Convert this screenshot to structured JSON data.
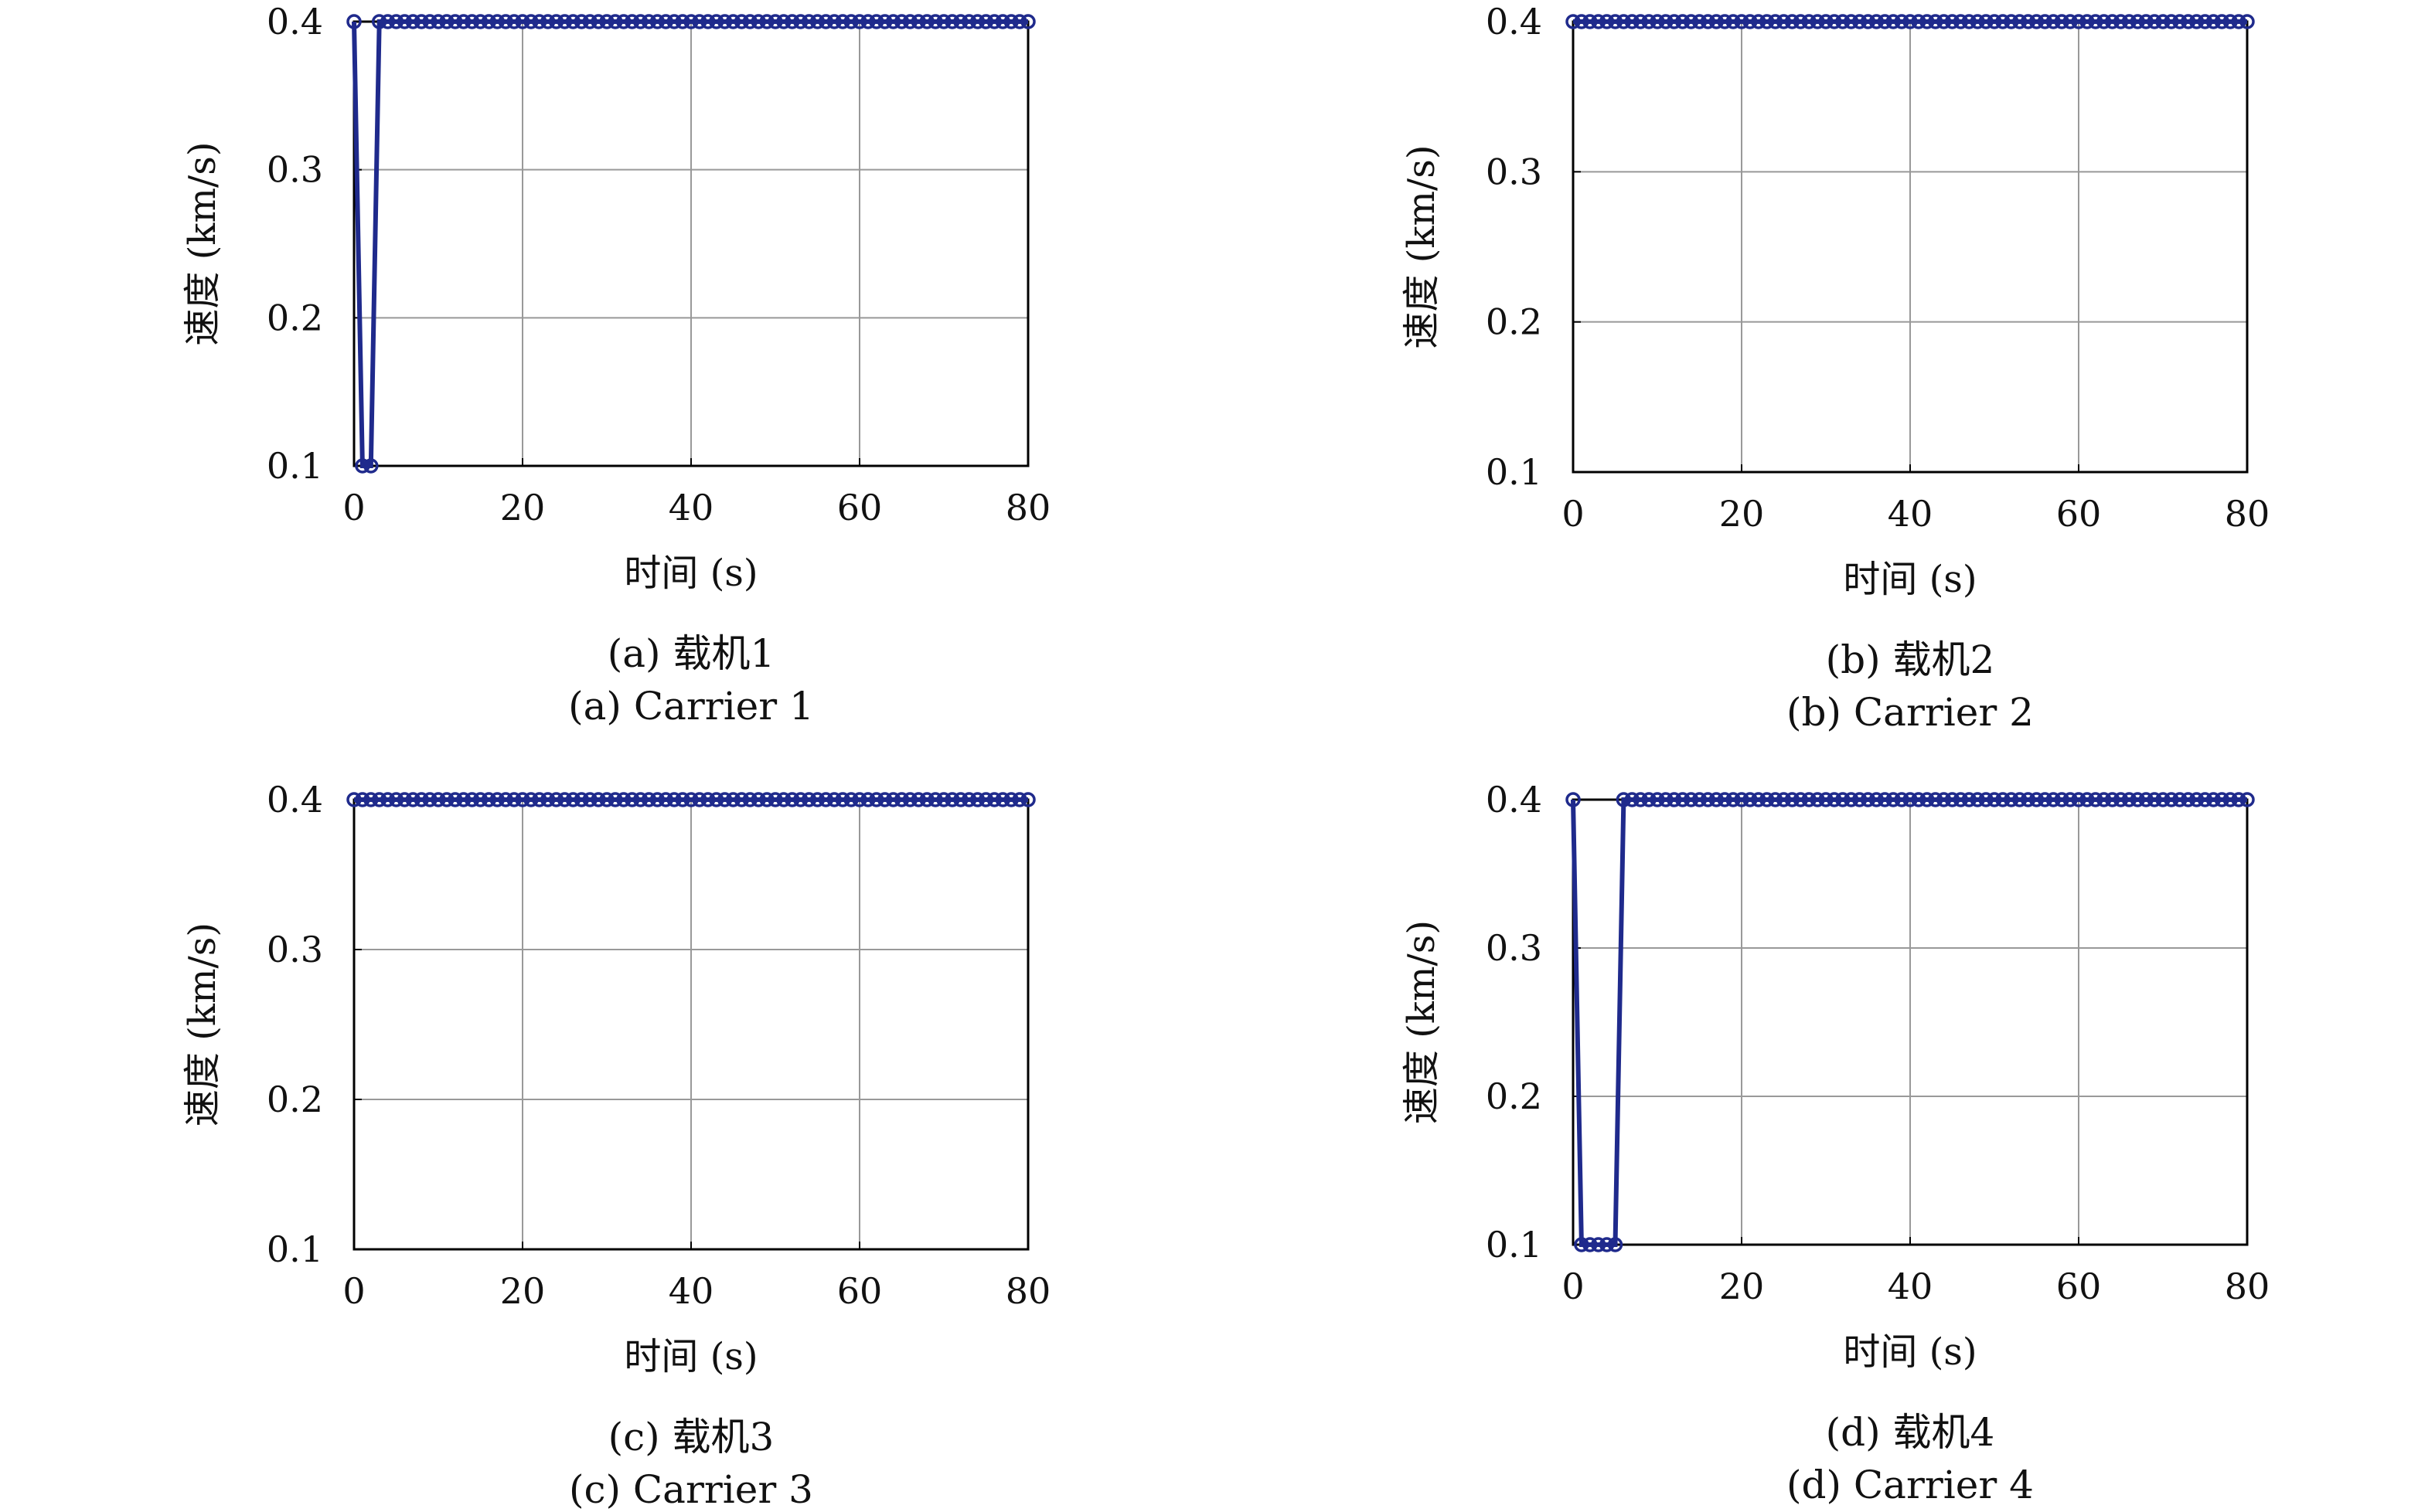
{
  "colors": {
    "series": "#1f2a8c",
    "grid": "#999999",
    "axis": "#000000",
    "background": "#ffffff"
  },
  "chart_data": [
    {
      "type": "line",
      "xlabel": "时间 (s)",
      "ylabel": "速度 (km/s)",
      "caption_cn": "(a) 载机1",
      "caption_en": "(a) Carrier 1",
      "xlim": [
        0,
        80
      ],
      "ylim": [
        0.1,
        0.4
      ],
      "xticks": [
        "0",
        "20",
        "40",
        "60",
        "80"
      ],
      "yticks": [
        "0.1",
        "0.2",
        "0.3",
        "0.4"
      ],
      "grid": true,
      "marker": "circle",
      "x": [
        0,
        1,
        2,
        3,
        4,
        5,
        6,
        7,
        8,
        9,
        10,
        11,
        12,
        13,
        14,
        15,
        16,
        17,
        18,
        19,
        20,
        21,
        22,
        23,
        24,
        25,
        26,
        27,
        28,
        29,
        30,
        31,
        32,
        33,
        34,
        35,
        36,
        37,
        38,
        39,
        40,
        41,
        42,
        43,
        44,
        45,
        46,
        47,
        48,
        49,
        50,
        51,
        52,
        53,
        54,
        55,
        56,
        57,
        58,
        59,
        60,
        61,
        62,
        63,
        64,
        65,
        66,
        67,
        68,
        69,
        70,
        71,
        72,
        73,
        74,
        75,
        76,
        77,
        78,
        79,
        80
      ],
      "y": [
        0.4,
        0.1,
        0.1,
        0.4,
        0.4,
        0.4,
        0.4,
        0.4,
        0.4,
        0.4,
        0.4,
        0.4,
        0.4,
        0.4,
        0.4,
        0.4,
        0.4,
        0.4,
        0.4,
        0.4,
        0.4,
        0.4,
        0.4,
        0.4,
        0.4,
        0.4,
        0.4,
        0.4,
        0.4,
        0.4,
        0.4,
        0.4,
        0.4,
        0.4,
        0.4,
        0.4,
        0.4,
        0.4,
        0.4,
        0.4,
        0.4,
        0.4,
        0.4,
        0.4,
        0.4,
        0.4,
        0.4,
        0.4,
        0.4,
        0.4,
        0.4,
        0.4,
        0.4,
        0.4,
        0.4,
        0.4,
        0.4,
        0.4,
        0.4,
        0.4,
        0.4,
        0.4,
        0.4,
        0.4,
        0.4,
        0.4,
        0.4,
        0.4,
        0.4,
        0.4,
        0.4,
        0.4,
        0.4,
        0.4,
        0.4,
        0.4,
        0.4,
        0.4,
        0.4,
        0.4,
        0.4
      ]
    },
    {
      "type": "line",
      "xlabel": "时间 (s)",
      "ylabel": "速度 (km/s)",
      "caption_cn": "(b) 载机2",
      "caption_en": "(b) Carrier 2",
      "xlim": [
        0,
        80
      ],
      "ylim": [
        0.1,
        0.4
      ],
      "xticks": [
        "0",
        "20",
        "40",
        "60",
        "80"
      ],
      "yticks": [
        "0.1",
        "0.2",
        "0.3",
        "0.4"
      ],
      "grid": true,
      "marker": "circle",
      "x": [
        0,
        1,
        2,
        3,
        4,
        5,
        6,
        7,
        8,
        9,
        10,
        11,
        12,
        13,
        14,
        15,
        16,
        17,
        18,
        19,
        20,
        21,
        22,
        23,
        24,
        25,
        26,
        27,
        28,
        29,
        30,
        31,
        32,
        33,
        34,
        35,
        36,
        37,
        38,
        39,
        40,
        41,
        42,
        43,
        44,
        45,
        46,
        47,
        48,
        49,
        50,
        51,
        52,
        53,
        54,
        55,
        56,
        57,
        58,
        59,
        60,
        61,
        62,
        63,
        64,
        65,
        66,
        67,
        68,
        69,
        70,
        71,
        72,
        73,
        74,
        75,
        76,
        77,
        78,
        79,
        80
      ],
      "y": [
        0.4,
        0.4,
        0.4,
        0.4,
        0.4,
        0.4,
        0.4,
        0.4,
        0.4,
        0.4,
        0.4,
        0.4,
        0.4,
        0.4,
        0.4,
        0.4,
        0.4,
        0.4,
        0.4,
        0.4,
        0.4,
        0.4,
        0.4,
        0.4,
        0.4,
        0.4,
        0.4,
        0.4,
        0.4,
        0.4,
        0.4,
        0.4,
        0.4,
        0.4,
        0.4,
        0.4,
        0.4,
        0.4,
        0.4,
        0.4,
        0.4,
        0.4,
        0.4,
        0.4,
        0.4,
        0.4,
        0.4,
        0.4,
        0.4,
        0.4,
        0.4,
        0.4,
        0.4,
        0.4,
        0.4,
        0.4,
        0.4,
        0.4,
        0.4,
        0.4,
        0.4,
        0.4,
        0.4,
        0.4,
        0.4,
        0.4,
        0.4,
        0.4,
        0.4,
        0.4,
        0.4,
        0.4,
        0.4,
        0.4,
        0.4,
        0.4,
        0.4,
        0.4,
        0.4,
        0.4,
        0.4
      ]
    },
    {
      "type": "line",
      "xlabel": "时间 (s)",
      "ylabel": "速度 (km/s)",
      "caption_cn": "(c) 载机3",
      "caption_en": "(c) Carrier 3",
      "xlim": [
        0,
        80
      ],
      "ylim": [
        0.1,
        0.4
      ],
      "xticks": [
        "0",
        "20",
        "40",
        "60",
        "80"
      ],
      "yticks": [
        "0.1",
        "0.2",
        "0.3",
        "0.4"
      ],
      "grid": true,
      "marker": "circle",
      "x": [
        0,
        1,
        2,
        3,
        4,
        5,
        6,
        7,
        8,
        9,
        10,
        11,
        12,
        13,
        14,
        15,
        16,
        17,
        18,
        19,
        20,
        21,
        22,
        23,
        24,
        25,
        26,
        27,
        28,
        29,
        30,
        31,
        32,
        33,
        34,
        35,
        36,
        37,
        38,
        39,
        40,
        41,
        42,
        43,
        44,
        45,
        46,
        47,
        48,
        49,
        50,
        51,
        52,
        53,
        54,
        55,
        56,
        57,
        58,
        59,
        60,
        61,
        62,
        63,
        64,
        65,
        66,
        67,
        68,
        69,
        70,
        71,
        72,
        73,
        74,
        75,
        76,
        77,
        78,
        79,
        80
      ],
      "y": [
        0.4,
        0.4,
        0.4,
        0.4,
        0.4,
        0.4,
        0.4,
        0.4,
        0.4,
        0.4,
        0.4,
        0.4,
        0.4,
        0.4,
        0.4,
        0.4,
        0.4,
        0.4,
        0.4,
        0.4,
        0.4,
        0.4,
        0.4,
        0.4,
        0.4,
        0.4,
        0.4,
        0.4,
        0.4,
        0.4,
        0.4,
        0.4,
        0.4,
        0.4,
        0.4,
        0.4,
        0.4,
        0.4,
        0.4,
        0.4,
        0.4,
        0.4,
        0.4,
        0.4,
        0.4,
        0.4,
        0.4,
        0.4,
        0.4,
        0.4,
        0.4,
        0.4,
        0.4,
        0.4,
        0.4,
        0.4,
        0.4,
        0.4,
        0.4,
        0.4,
        0.4,
        0.4,
        0.4,
        0.4,
        0.4,
        0.4,
        0.4,
        0.4,
        0.4,
        0.4,
        0.4,
        0.4,
        0.4,
        0.4,
        0.4,
        0.4,
        0.4,
        0.4,
        0.4,
        0.4,
        0.4
      ]
    },
    {
      "type": "line",
      "xlabel": "时间 (s)",
      "ylabel": "速度 (km/s)",
      "caption_cn": "(d) 载机4",
      "caption_en": "(d) Carrier 4",
      "xlim": [
        0,
        80
      ],
      "ylim": [
        0.1,
        0.4
      ],
      "xticks": [
        "0",
        "20",
        "40",
        "60",
        "80"
      ],
      "yticks": [
        "0.1",
        "0.2",
        "0.3",
        "0.4"
      ],
      "grid": true,
      "marker": "circle",
      "x": [
        0,
        1,
        2,
        3,
        4,
        5,
        6,
        7,
        8,
        9,
        10,
        11,
        12,
        13,
        14,
        15,
        16,
        17,
        18,
        19,
        20,
        21,
        22,
        23,
        24,
        25,
        26,
        27,
        28,
        29,
        30,
        31,
        32,
        33,
        34,
        35,
        36,
        37,
        38,
        39,
        40,
        41,
        42,
        43,
        44,
        45,
        46,
        47,
        48,
        49,
        50,
        51,
        52,
        53,
        54,
        55,
        56,
        57,
        58,
        59,
        60,
        61,
        62,
        63,
        64,
        65,
        66,
        67,
        68,
        69,
        70,
        71,
        72,
        73,
        74,
        75,
        76,
        77,
        78,
        79,
        80
      ],
      "y": [
        0.4,
        0.1,
        0.1,
        0.1,
        0.1,
        0.1,
        0.4,
        0.4,
        0.4,
        0.4,
        0.4,
        0.4,
        0.4,
        0.4,
        0.4,
        0.4,
        0.4,
        0.4,
        0.4,
        0.4,
        0.4,
        0.4,
        0.4,
        0.4,
        0.4,
        0.4,
        0.4,
        0.4,
        0.4,
        0.4,
        0.4,
        0.4,
        0.4,
        0.4,
        0.4,
        0.4,
        0.4,
        0.4,
        0.4,
        0.4,
        0.4,
        0.4,
        0.4,
        0.4,
        0.4,
        0.4,
        0.4,
        0.4,
        0.4,
        0.4,
        0.4,
        0.4,
        0.4,
        0.4,
        0.4,
        0.4,
        0.4,
        0.4,
        0.4,
        0.4,
        0.4,
        0.4,
        0.4,
        0.4,
        0.4,
        0.4,
        0.4,
        0.4,
        0.4,
        0.4,
        0.4,
        0.4,
        0.4,
        0.4,
        0.4,
        0.4,
        0.4,
        0.4,
        0.4,
        0.4,
        0.4
      ]
    }
  ]
}
